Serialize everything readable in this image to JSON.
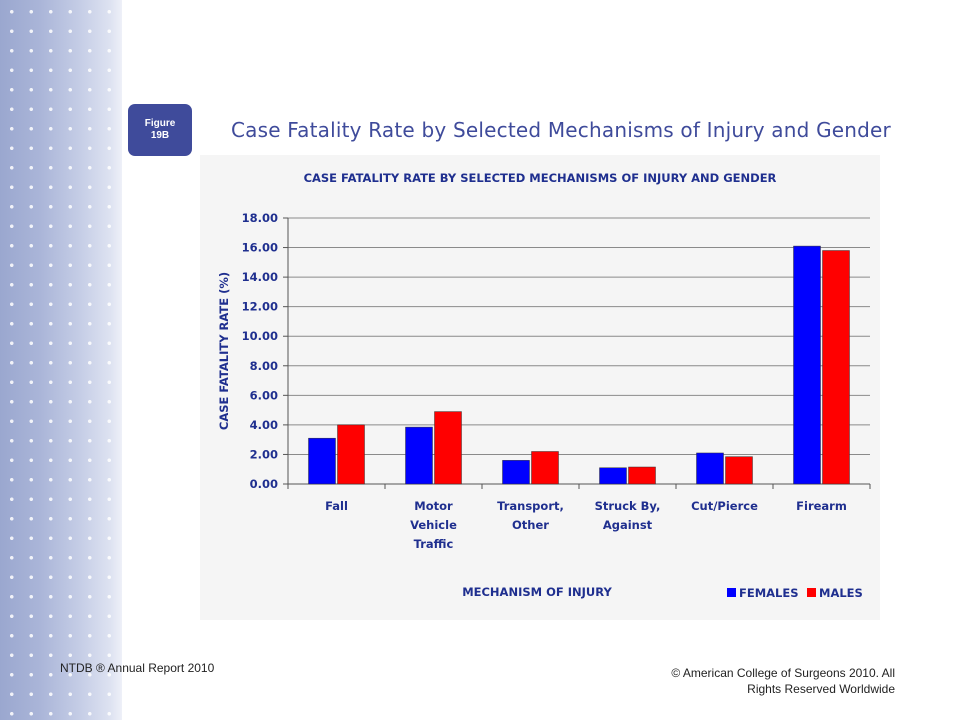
{
  "slide": {
    "figure_badge_line1": "Figure",
    "figure_badge_line2": "19B",
    "title": "Case Fatality Rate by Selected Mechanisms of Injury and Gender",
    "footer_left": "NTDB ® Annual Report 2010",
    "footer_right_line1": "© American College of Surgeons 2010.  All",
    "footer_right_line2": "Rights Reserved Worldwide"
  },
  "colors": {
    "females": "#0000ff",
    "males": "#ff0000",
    "chart_text": "#1f2f8f",
    "badge": "#3f4b9b"
  },
  "chart_data": {
    "type": "bar",
    "title": "CASE FATALITY RATE BY SELECTED MECHANISMS OF INJURY AND GENDER",
    "xlabel": "MECHANISM OF INJURY",
    "ylabel": "CASE FATALITY RATE (%)",
    "ylim": [
      0,
      18
    ],
    "yticks": [
      "0.00",
      "2.00",
      "4.00",
      "6.00",
      "8.00",
      "10.00",
      "12.00",
      "14.00",
      "16.00",
      "18.00"
    ],
    "grid": true,
    "legend_position": "bottom-right",
    "categories": [
      [
        "Fall"
      ],
      [
        "Motor",
        "Vehicle",
        "Traffic"
      ],
      [
        "Transport,",
        "Other"
      ],
      [
        "Struck By,",
        "Against"
      ],
      [
        "Cut/Pierce"
      ],
      [
        "Firearm"
      ]
    ],
    "series": [
      {
        "name": "FEMALES",
        "values": [
          3.1,
          3.85,
          1.6,
          1.1,
          2.1,
          16.1
        ]
      },
      {
        "name": "MALES",
        "values": [
          4.0,
          4.9,
          2.2,
          1.15,
          1.85,
          15.8
        ]
      }
    ]
  }
}
